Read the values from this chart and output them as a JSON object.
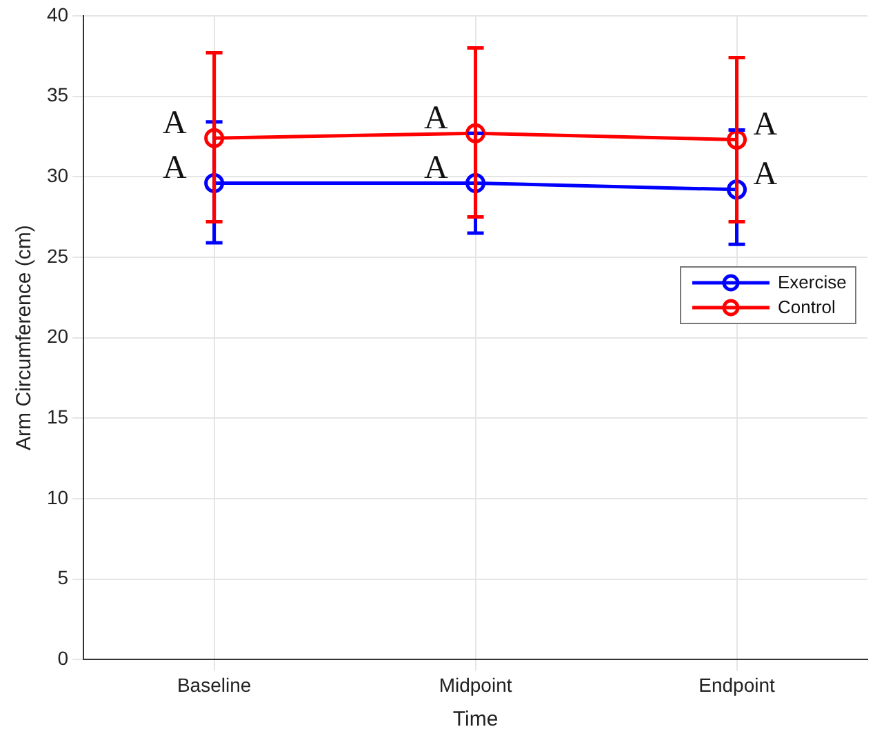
{
  "chart_data": {
    "type": "line",
    "xlabel": "Time",
    "ylabel": "Arm Circumference (cm)",
    "categories": [
      "Baseline",
      "Midpoint",
      "Endpoint"
    ],
    "series": [
      {
        "name": "Exercise",
        "color": "#0000ff",
        "values": [
          29.6,
          29.6,
          29.2
        ],
        "errors": [
          [
            25.9,
            33.4
          ],
          [
            26.5,
            32.7
          ],
          [
            25.8,
            32.9
          ]
        ]
      },
      {
        "name": "Control",
        "color": "#ff0000",
        "values": [
          32.4,
          32.7,
          32.3
        ],
        "errors": [
          [
            27.2,
            37.7
          ],
          [
            27.5,
            38.0
          ],
          [
            27.2,
            37.4
          ]
        ]
      }
    ],
    "ylim": [
      0,
      40
    ],
    "yticks": [
      0,
      5,
      10,
      15,
      20,
      25,
      30,
      35,
      40
    ],
    "grid": true,
    "legend": "right",
    "marker": "circle",
    "line_style": "solid",
    "annotations": [
      {
        "text": "A",
        "x": "Baseline",
        "y": 32.4
      },
      {
        "text": "A",
        "x": "Baseline",
        "y": 29.6
      },
      {
        "text": "A",
        "x": "Midpoint",
        "y": 32.7
      },
      {
        "text": "A",
        "x": "Midpoint",
        "y": 29.6
      },
      {
        "text": "A",
        "x": "Endpoint",
        "y": 32.3
      },
      {
        "text": "A",
        "x": "Endpoint",
        "y": 29.2
      }
    ]
  }
}
